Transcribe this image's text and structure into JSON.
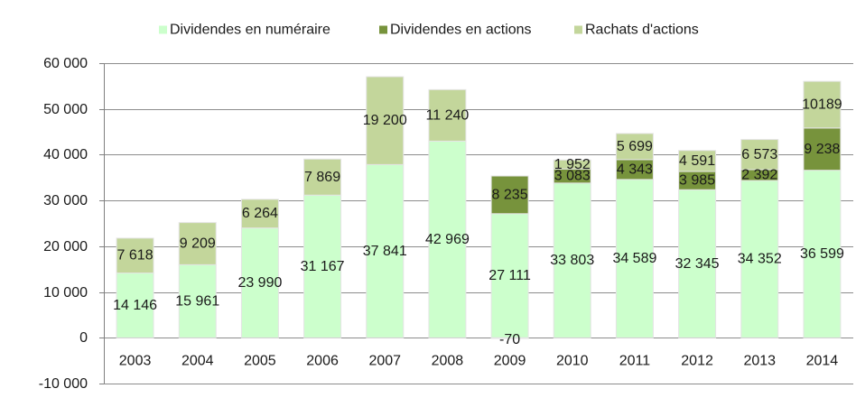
{
  "chart_data": {
    "type": "bar",
    "stacked": true,
    "title": "",
    "xlabel": "",
    "ylabel": "",
    "categories": [
      "2003",
      "2004",
      "2005",
      "2006",
      "2007",
      "2008",
      "2009",
      "2010",
      "2011",
      "2012",
      "2013",
      "2014"
    ],
    "series": [
      {
        "name": "Dividendes en numéraire",
        "color": "#ccffcc",
        "values": [
          14146,
          15961,
          23990,
          31167,
          37841,
          42969,
          27111,
          33803,
          34589,
          32345,
          34352,
          36599
        ],
        "labels": [
          "14 146",
          "15 961",
          "23 990",
          "31 167",
          "37 841",
          "42 969",
          "27 111",
          "33 803",
          "34 589",
          "32 345",
          "34 352",
          "36 599"
        ]
      },
      {
        "name": "Dividendes en actions",
        "color": "#77933c",
        "values": [
          null,
          null,
          null,
          null,
          null,
          null,
          8235,
          3083,
          4343,
          3985,
          2392,
          9238
        ],
        "labels": [
          null,
          null,
          null,
          null,
          null,
          null,
          "8 235",
          "3 083",
          "4 343",
          "3 985",
          "2 392",
          "9 238"
        ]
      },
      {
        "name": "Rachats d'actions",
        "color": "#c3d69b",
        "values": [
          7618,
          9209,
          6264,
          7869,
          19200,
          11240,
          -70,
          1952,
          5699,
          4591,
          6573,
          10189
        ],
        "labels": [
          "7 618",
          "9 209",
          "6 264",
          "7 869",
          "19 200",
          "11 240",
          "-70",
          "1 952",
          "5 699",
          "4 591",
          "6 573",
          "10189"
        ]
      }
    ],
    "ylim": [
      -10000,
      60000
    ],
    "yticks": [
      {
        "value": 60000,
        "label": "60 000"
      },
      {
        "value": 50000,
        "label": "50 000"
      },
      {
        "value": 40000,
        "label": "40 000"
      },
      {
        "value": 30000,
        "label": "30 000"
      },
      {
        "value": 20000,
        "label": "20 000"
      },
      {
        "value": 10000,
        "label": "10 000"
      },
      {
        "value": 0,
        "label": "0"
      },
      {
        "value": -10000,
        "label": "-10 000"
      }
    ],
    "grid": true,
    "legend": "top"
  }
}
